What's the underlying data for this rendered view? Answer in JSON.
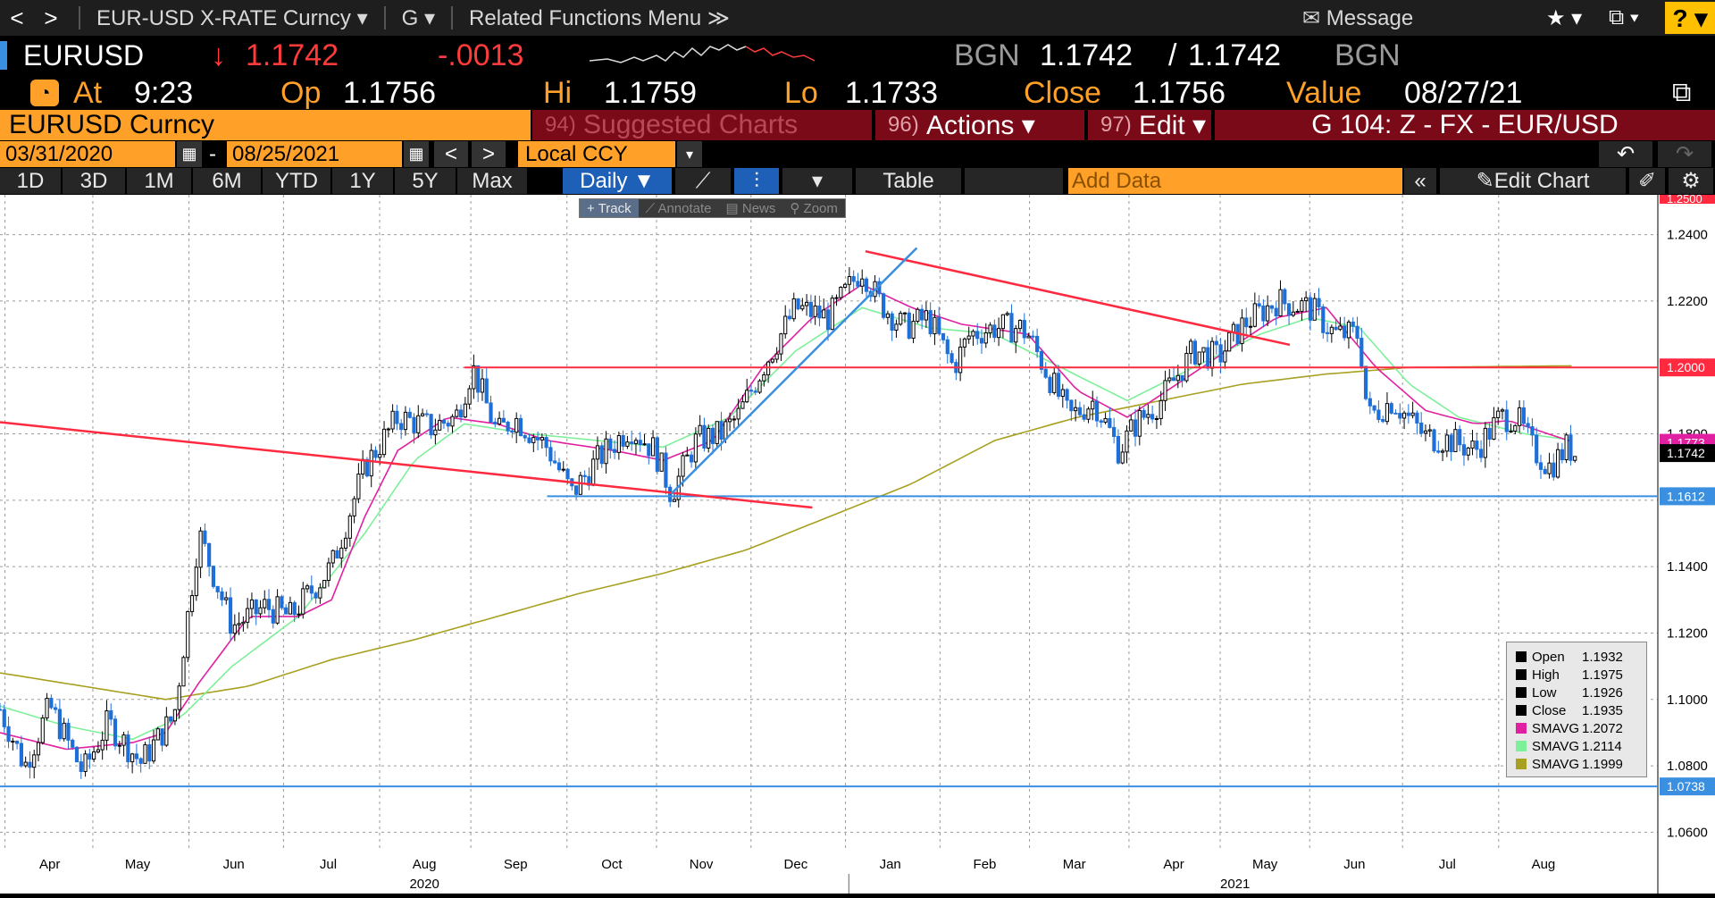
{
  "topbar": {
    "back": "<",
    "fwd": ">",
    "security": "EUR-USD X-RATE Curncy ▾",
    "g": "G ▾",
    "related": "Related Functions Menu ≫",
    "message": "Message",
    "star": "★ ▾",
    "window": "⧉ ▾",
    "help": "? ▾"
  },
  "quote": {
    "ticker": "EURUSD",
    "arrow": "↓",
    "last": "1.1742",
    "change": "-.0013",
    "src1": "BGN",
    "bid": "1.1742",
    "slash": "/",
    "ask": "1.1742",
    "src2": "BGN"
  },
  "stats": {
    "at_label": "At",
    "at": "9:23",
    "op_label": "Op",
    "op": "1.1756",
    "hi_label": "Hi",
    "hi": "1.1759",
    "lo_label": "Lo",
    "lo": "1.1733",
    "close_label": "Close",
    "close": "1.1756",
    "value_label": "Value",
    "value": "08/27/21"
  },
  "toolbar": {
    "security": "EURUSD Curncy",
    "suggested_num": "94)",
    "suggested": "Suggested Charts",
    "actions_num": "96)",
    "actions": "Actions ▾",
    "edit_num": "97)",
    "edit": "Edit ▾",
    "gname": "G 104: Z - FX - EUR/USD"
  },
  "range": {
    "start": "03/31/2020",
    "dash": "-",
    "end": "08/25/2021",
    "prev": "<",
    "next": ">",
    "ccy": "Local CCY",
    "ccy_arrow": "▾"
  },
  "periods": [
    "1D",
    "3D",
    "1M",
    "6M",
    "YTD",
    "1Y",
    "5Y",
    "Max"
  ],
  "freq": "Daily ▼",
  "table": "Table",
  "add_data_placeholder": "Add Data",
  "collapse": "«",
  "edit_chart": "Edit Chart",
  "chart_tools": [
    "+ Track",
    "⟋ Annotate",
    "▤ News",
    "⚲ Zoom"
  ],
  "legend": [
    {
      "label": "Open",
      "value": "1.1932",
      "color": "#000000"
    },
    {
      "label": "High",
      "value": "1.1975",
      "color": "#000000"
    },
    {
      "label": "Low",
      "value": "1.1926",
      "color": "#000000"
    },
    {
      "label": "Close",
      "value": "1.1935",
      "color": "#000000"
    },
    {
      "label": "SMAVG",
      "value": "1.2072",
      "color": "#e020a0"
    },
    {
      "label": "SMAVG",
      "value": "1.2114",
      "color": "#7ef09a"
    },
    {
      "label": "SMAVG",
      "value": "1.1999",
      "color": "#a8a020"
    }
  ],
  "chart_data": {
    "type": "candlestick",
    "ylim": [
      1.055,
      1.252
    ],
    "yticks": [
      "1.2400",
      "1.2200",
      "1.2000",
      "1.1800",
      "1.1600",
      "1.1400",
      "1.1200",
      "1.1000",
      "1.0800",
      "1.0600"
    ],
    "ytick_values": [
      1.24,
      1.22,
      1.2,
      1.18,
      1.16,
      1.14,
      1.12,
      1.1,
      1.08,
      1.06
    ],
    "months": [
      "Apr",
      "May",
      "Jun",
      "Jul",
      "Aug",
      "Sep",
      "Oct",
      "Nov",
      "Dec",
      "Jan",
      "Feb",
      "Mar",
      "Apr",
      "May",
      "Jun",
      "Jul",
      "Aug"
    ],
    "years": [
      "2020",
      "2021"
    ],
    "top_price_tag": "1.2500",
    "price_tags": [
      {
        "label": "1.2000",
        "value": 1.2,
        "color": "#ff2a40"
      },
      {
        "label": "1.1773",
        "value": 1.1773,
        "color": "#e020a0"
      },
      {
        "label": "1.1742",
        "value": 1.1742,
        "color": "#ffffff"
      },
      {
        "label": "1.1612",
        "value": 1.1612,
        "color": "#3a8fe0"
      },
      {
        "label": "1.0738",
        "value": 1.0738,
        "color": "#3a8fe0"
      }
    ],
    "hlines": [
      {
        "value": 1.2,
        "color": "#ff2a40",
        "from": 0.28
      },
      {
        "value": 1.1612,
        "color": "#3a8fe0",
        "from": 0.33
      },
      {
        "value": 1.0738,
        "color": "#3a8fe0",
        "from": 0
      }
    ],
    "trendlines": [
      {
        "color": "#ff2a40",
        "x0": 0,
        "y0": 1.1835,
        "x1": 0.49,
        "y1": 1.1578
      },
      {
        "color": "#ff2a40",
        "x0": 0.522,
        "y0": 1.235,
        "x1": 0.778,
        "y1": 1.2068
      },
      {
        "color": "#3a8fe0",
        "x0": 0.405,
        "y0": 1.162,
        "x1": 0.553,
        "y1": 1.236
      }
    ],
    "close_anchors": [
      [
        0,
        1.097
      ],
      [
        0.015,
        1.08
      ],
      [
        0.03,
        1.098
      ],
      [
        0.05,
        1.078
      ],
      [
        0.065,
        1.093
      ],
      [
        0.085,
        1.081
      ],
      [
        0.105,
        1.095
      ],
      [
        0.12,
        1.15
      ],
      [
        0.14,
        1.122
      ],
      [
        0.16,
        1.128
      ],
      [
        0.175,
        1.125
      ],
      [
        0.2,
        1.14
      ],
      [
        0.22,
        1.17
      ],
      [
        0.24,
        1.185
      ],
      [
        0.26,
        1.182
      ],
      [
        0.275,
        1.185
      ],
      [
        0.285,
        1.2
      ],
      [
        0.3,
        1.18
      ],
      [
        0.31,
        1.185
      ],
      [
        0.33,
        1.176
      ],
      [
        0.345,
        1.162
      ],
      [
        0.36,
        1.172
      ],
      [
        0.38,
        1.182
      ],
      [
        0.395,
        1.175
      ],
      [
        0.405,
        1.162
      ],
      [
        0.42,
        1.178
      ],
      [
        0.435,
        1.18
      ],
      [
        0.445,
        1.185
      ],
      [
        0.46,
        1.2
      ],
      [
        0.48,
        1.218
      ],
      [
        0.5,
        1.215
      ],
      [
        0.52,
        1.23
      ],
      [
        0.53,
        1.22
      ],
      [
        0.545,
        1.212
      ],
      [
        0.56,
        1.215
      ],
      [
        0.575,
        1.2
      ],
      [
        0.585,
        1.21
      ],
      [
        0.6,
        1.212
      ],
      [
        0.615,
        1.212
      ],
      [
        0.62,
        1.21
      ],
      [
        0.63,
        1.2
      ],
      [
        0.645,
        1.185
      ],
      [
        0.66,
        1.19
      ],
      [
        0.675,
        1.175
      ],
      [
        0.685,
        1.183
      ],
      [
        0.7,
        1.19
      ],
      [
        0.72,
        1.205
      ],
      [
        0.735,
        1.203
      ],
      [
        0.75,
        1.213
      ],
      [
        0.77,
        1.22
      ],
      [
        0.79,
        1.218
      ],
      [
        0.805,
        1.21
      ],
      [
        0.82,
        1.21
      ],
      [
        0.825,
        1.185
      ],
      [
        0.84,
        1.19
      ],
      [
        0.86,
        1.179
      ],
      [
        0.875,
        1.178
      ],
      [
        0.89,
        1.175
      ],
      [
        0.905,
        1.185
      ],
      [
        0.915,
        1.185
      ],
      [
        0.925,
        1.175
      ],
      [
        0.935,
        1.17
      ],
      [
        0.945,
        1.176
      ],
      [
        0.95,
        1.1742
      ]
    ],
    "sma_fast": [
      [
        0,
        1.09
      ],
      [
        0.04,
        1.085
      ],
      [
        0.08,
        1.087
      ],
      [
        0.1,
        1.09
      ],
      [
        0.12,
        1.105
      ],
      [
        0.15,
        1.125
      ],
      [
        0.18,
        1.125
      ],
      [
        0.2,
        1.13
      ],
      [
        0.22,
        1.155
      ],
      [
        0.24,
        1.175
      ],
      [
        0.27,
        1.185
      ],
      [
        0.3,
        1.183
      ],
      [
        0.33,
        1.178
      ],
      [
        0.37,
        1.175
      ],
      [
        0.4,
        1.172
      ],
      [
        0.43,
        1.178
      ],
      [
        0.46,
        1.2
      ],
      [
        0.49,
        1.215
      ],
      [
        0.52,
        1.225
      ],
      [
        0.55,
        1.218
      ],
      [
        0.58,
        1.213
      ],
      [
        0.62,
        1.21
      ],
      [
        0.65,
        1.193
      ],
      [
        0.68,
        1.185
      ],
      [
        0.71,
        1.195
      ],
      [
        0.74,
        1.205
      ],
      [
        0.77,
        1.215
      ],
      [
        0.8,
        1.218
      ],
      [
        0.83,
        1.2
      ],
      [
        0.86,
        1.187
      ],
      [
        0.89,
        1.183
      ],
      [
        0.91,
        1.184
      ],
      [
        0.95,
        1.1773
      ]
    ],
    "sma_mid": [
      [
        0,
        1.098
      ],
      [
        0.04,
        1.092
      ],
      [
        0.08,
        1.088
      ],
      [
        0.11,
        1.095
      ],
      [
        0.14,
        1.11
      ],
      [
        0.18,
        1.125
      ],
      [
        0.22,
        1.15
      ],
      [
        0.25,
        1.172
      ],
      [
        0.28,
        1.183
      ],
      [
        0.32,
        1.18
      ],
      [
        0.36,
        1.178
      ],
      [
        0.4,
        1.176
      ],
      [
        0.44,
        1.185
      ],
      [
        0.48,
        1.205
      ],
      [
        0.52,
        1.218
      ],
      [
        0.56,
        1.212
      ],
      [
        0.6,
        1.21
      ],
      [
        0.64,
        1.2
      ],
      [
        0.68,
        1.19
      ],
      [
        0.72,
        1.2
      ],
      [
        0.76,
        1.21
      ],
      [
        0.79,
        1.215
      ],
      [
        0.82,
        1.212
      ],
      [
        0.85,
        1.195
      ],
      [
        0.88,
        1.185
      ],
      [
        0.92,
        1.18
      ],
      [
        0.95,
        1.178
      ]
    ],
    "sma_slow": [
      [
        0,
        1.108
      ],
      [
        0.05,
        1.104
      ],
      [
        0.1,
        1.1
      ],
      [
        0.15,
        1.104
      ],
      [
        0.2,
        1.112
      ],
      [
        0.25,
        1.118
      ],
      [
        0.3,
        1.125
      ],
      [
        0.35,
        1.132
      ],
      [
        0.4,
        1.138
      ],
      [
        0.45,
        1.145
      ],
      [
        0.5,
        1.155
      ],
      [
        0.55,
        1.165
      ],
      [
        0.6,
        1.178
      ],
      [
        0.65,
        1.185
      ],
      [
        0.7,
        1.19
      ],
      [
        0.75,
        1.195
      ],
      [
        0.8,
        1.198
      ],
      [
        0.85,
        1.2
      ],
      [
        0.95,
        1.2005
      ]
    ]
  }
}
